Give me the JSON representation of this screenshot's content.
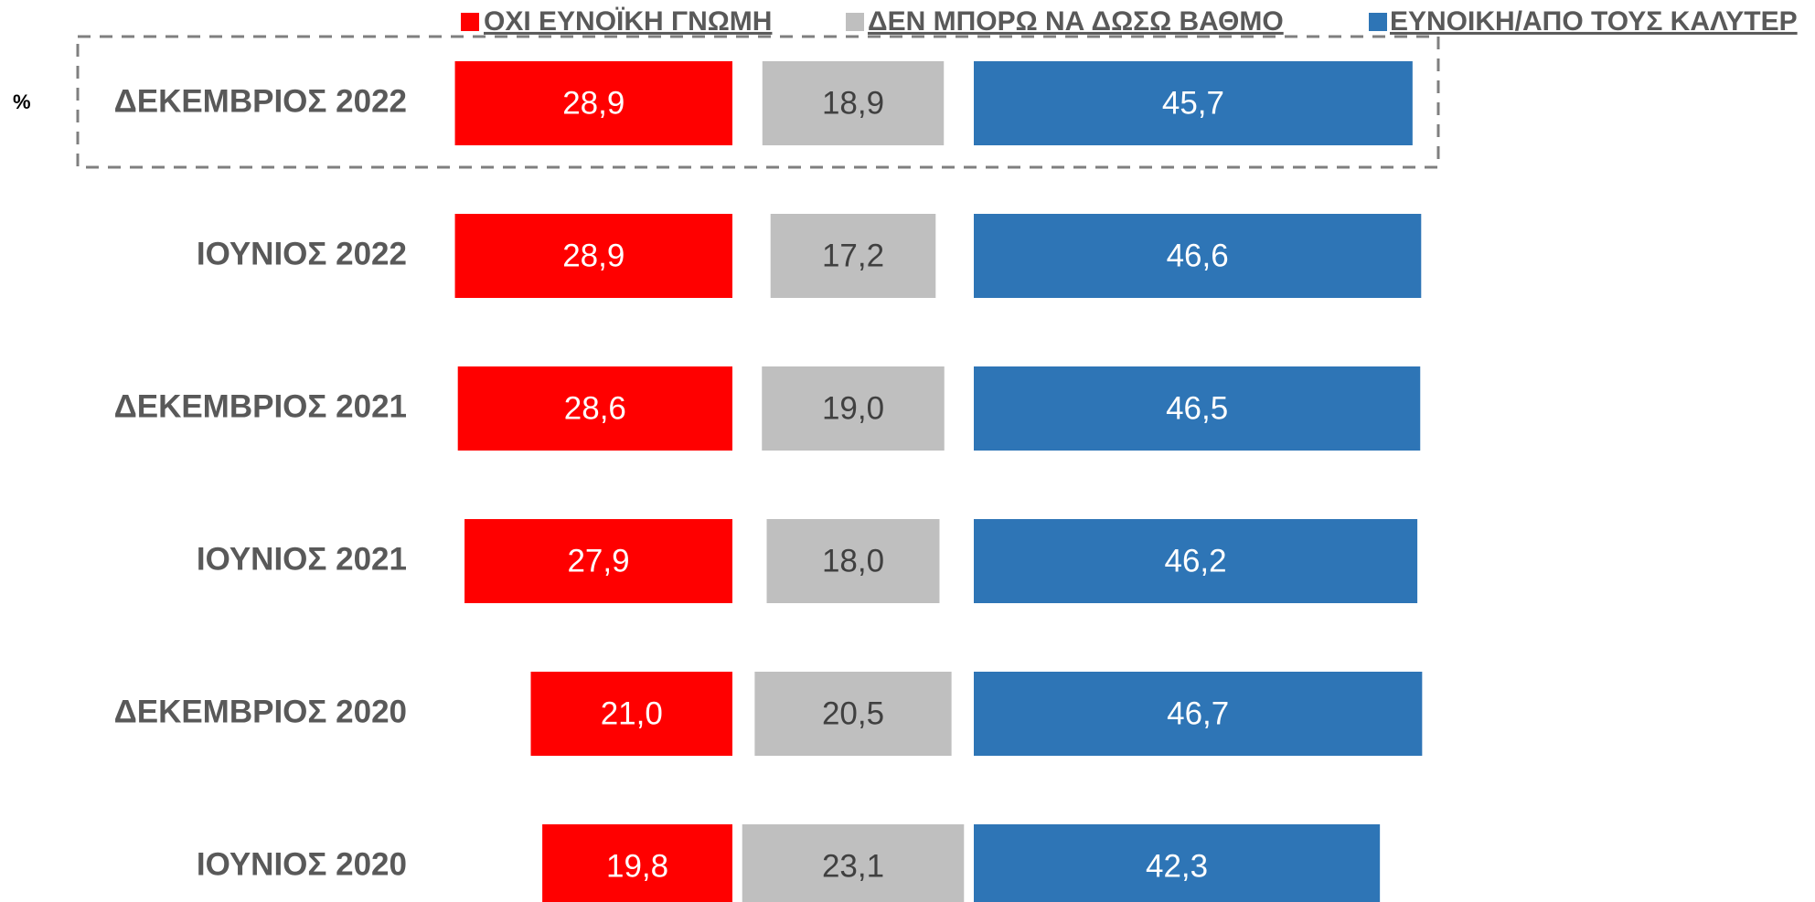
{
  "chart_data": {
    "type": "bar",
    "unit_label": "%",
    "categories": [
      "ΔΕΚΕΜΒΡΙΟΣ 2022",
      "ΙΟΥΝΙΟΣ 2022",
      "ΔΕΚΕΜΒΡΙΟΣ 2021",
      "ΙΟΥΝΙΟΣ 2021",
      "ΔΕΚΕΜΒΡΙΟΣ 2020",
      "ΙΟΥΝΙΟΣ 2020"
    ],
    "series": [
      {
        "name": "ΟΧΙ ΕΥΝΟΪΚΗ ΓΝΩΜΗ",
        "color": "#ff0000",
        "values": [
          28.9,
          28.9,
          28.6,
          27.9,
          21.0,
          19.8
        ],
        "value_labels": [
          "28,9",
          "28,9",
          "28,6",
          "27,9",
          "21,0",
          "19,8"
        ]
      },
      {
        "name": "ΔΕΝ ΜΠΟΡΩ ΝΑ ΔΩΣΩ ΒΑΘΜΟ",
        "color": "#bfbfbf",
        "values": [
          18.9,
          17.2,
          19.0,
          18.0,
          20.5,
          23.1
        ],
        "value_labels": [
          "18,9",
          "17,2",
          "19,0",
          "18,0",
          "20,5",
          "23,1"
        ]
      },
      {
        "name": "ΕΥΝΟΙΚΗ/ΑΠΟ ΤΟΥΣ ΚΑΛΥΤΕΡ",
        "color": "#2e75b6",
        "values": [
          45.7,
          46.6,
          46.5,
          46.2,
          46.7,
          42.3
        ],
        "value_labels": [
          "45,7",
          "46,6",
          "46,5",
          "46,2",
          "46,7",
          "42,3"
        ]
      }
    ]
  }
}
